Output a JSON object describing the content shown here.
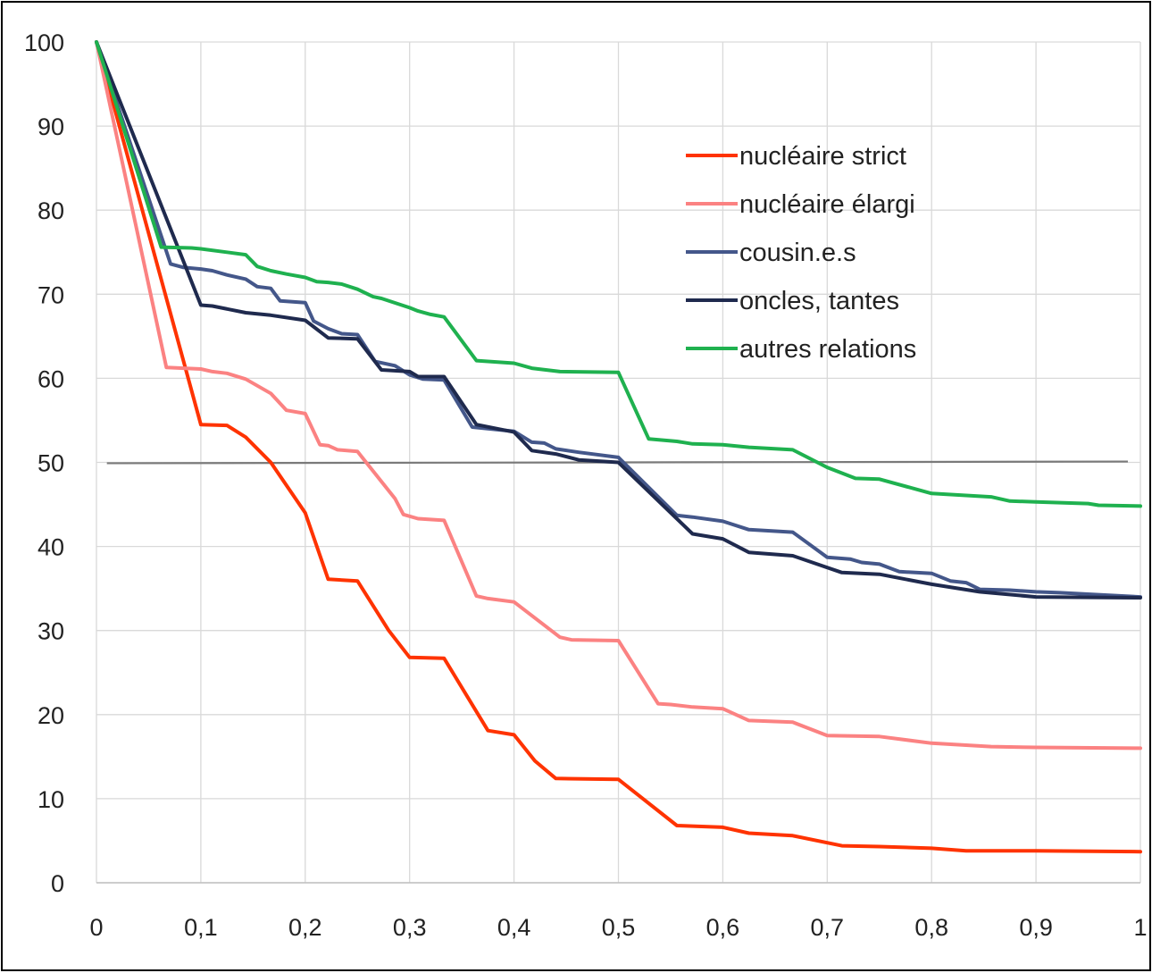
{
  "chart_data": {
    "type": "line",
    "title": "",
    "xlabel": "",
    "ylabel": "",
    "xlim": [
      0,
      1
    ],
    "ylim": [
      0,
      100
    ],
    "x_ticks": [
      "0",
      "0,1",
      "0,2",
      "0,3",
      "0,4",
      "0,5",
      "0,6",
      "0,7",
      "0,8",
      "0,9",
      "1"
    ],
    "y_ticks": [
      "0",
      "10",
      "20",
      "30",
      "40",
      "50",
      "60",
      "70",
      "80",
      "90",
      "100"
    ],
    "grid": true,
    "legend_position": "top-right",
    "reference_line": {
      "y_start": 49.9,
      "y_end": 50.1,
      "color": "#7a7a7a"
    },
    "series": [
      {
        "name": "nucléaire strict",
        "color": "#ff3300",
        "points": [
          [
            0,
            100
          ],
          [
            0.1,
            54.5
          ],
          [
            0.125,
            54.4
          ],
          [
            0.143,
            53
          ],
          [
            0.167,
            50
          ],
          [
            0.2,
            44
          ],
          [
            0.222,
            36.1
          ],
          [
            0.25,
            35.9
          ],
          [
            0.28,
            30
          ],
          [
            0.3,
            26.8
          ],
          [
            0.333,
            26.7
          ],
          [
            0.375,
            18.1
          ],
          [
            0.4,
            17.6
          ],
          [
            0.42,
            14.5
          ],
          [
            0.44,
            12.4
          ],
          [
            0.5,
            12.3
          ],
          [
            0.556,
            6.8
          ],
          [
            0.6,
            6.6
          ],
          [
            0.625,
            5.9
          ],
          [
            0.667,
            5.6
          ],
          [
            0.714,
            4.4
          ],
          [
            0.75,
            4.3
          ],
          [
            0.8,
            4.1
          ],
          [
            0.833,
            3.8
          ],
          [
            0.9,
            3.8
          ],
          [
            1,
            3.7
          ]
        ]
      },
      {
        "name": "nucléaire élargi",
        "color": "#fb8282",
        "points": [
          [
            0,
            100
          ],
          [
            0.067,
            61.3
          ],
          [
            0.1,
            61.1
          ],
          [
            0.111,
            60.8
          ],
          [
            0.125,
            60.6
          ],
          [
            0.143,
            59.9
          ],
          [
            0.167,
            58.2
          ],
          [
            0.182,
            56.2
          ],
          [
            0.2,
            55.8
          ],
          [
            0.214,
            52.1
          ],
          [
            0.222,
            52
          ],
          [
            0.231,
            51.5
          ],
          [
            0.25,
            51.3
          ],
          [
            0.286,
            45.7
          ],
          [
            0.294,
            43.8
          ],
          [
            0.308,
            43.3
          ],
          [
            0.333,
            43.1
          ],
          [
            0.364,
            34.1
          ],
          [
            0.375,
            33.8
          ],
          [
            0.4,
            33.4
          ],
          [
            0.444,
            29.2
          ],
          [
            0.455,
            28.9
          ],
          [
            0.5,
            28.8
          ],
          [
            0.538,
            21.3
          ],
          [
            0.55,
            21.2
          ],
          [
            0.571,
            20.9
          ],
          [
            0.6,
            20.7
          ],
          [
            0.625,
            19.3
          ],
          [
            0.667,
            19.1
          ],
          [
            0.7,
            17.5
          ],
          [
            0.75,
            17.4
          ],
          [
            0.8,
            16.6
          ],
          [
            0.857,
            16.2
          ],
          [
            0.9,
            16.1
          ],
          [
            1,
            16
          ]
        ]
      },
      {
        "name": "cousin.e.s",
        "color": "#44578a",
        "points": [
          [
            0,
            100
          ],
          [
            0.071,
            73.6
          ],
          [
            0.083,
            73.2
          ],
          [
            0.1,
            73
          ],
          [
            0.111,
            72.8
          ],
          [
            0.125,
            72.3
          ],
          [
            0.143,
            71.8
          ],
          [
            0.154,
            70.9
          ],
          [
            0.167,
            70.7
          ],
          [
            0.176,
            69.2
          ],
          [
            0.2,
            69
          ],
          [
            0.208,
            66.8
          ],
          [
            0.222,
            65.9
          ],
          [
            0.235,
            65.3
          ],
          [
            0.25,
            65.2
          ],
          [
            0.267,
            62
          ],
          [
            0.286,
            61.5
          ],
          [
            0.3,
            60.4
          ],
          [
            0.313,
            59.9
          ],
          [
            0.333,
            59.8
          ],
          [
            0.36,
            54.2
          ],
          [
            0.4,
            53.7
          ],
          [
            0.417,
            52.4
          ],
          [
            0.429,
            52.3
          ],
          [
            0.44,
            51.6
          ],
          [
            0.462,
            51.2
          ],
          [
            0.5,
            50.6
          ],
          [
            0.556,
            43.7
          ],
          [
            0.571,
            43.5
          ],
          [
            0.6,
            43
          ],
          [
            0.625,
            42
          ],
          [
            0.667,
            41.7
          ],
          [
            0.7,
            38.7
          ],
          [
            0.722,
            38.5
          ],
          [
            0.733,
            38.1
          ],
          [
            0.75,
            37.9
          ],
          [
            0.769,
            37
          ],
          [
            0.8,
            36.8
          ],
          [
            0.818,
            35.9
          ],
          [
            0.833,
            35.7
          ],
          [
            0.846,
            34.9
          ],
          [
            0.875,
            34.8
          ],
          [
            0.9,
            34.6
          ],
          [
            0.923,
            34.5
          ],
          [
            1,
            34
          ]
        ]
      },
      {
        "name": "oncles, tantes",
        "color": "#1f2a4e",
        "points": [
          [
            0,
            100
          ],
          [
            0.1,
            68.7
          ],
          [
            0.111,
            68.6
          ],
          [
            0.143,
            67.8
          ],
          [
            0.167,
            67.5
          ],
          [
            0.2,
            66.9
          ],
          [
            0.222,
            64.8
          ],
          [
            0.25,
            64.7
          ],
          [
            0.273,
            61
          ],
          [
            0.3,
            60.8
          ],
          [
            0.308,
            60.2
          ],
          [
            0.333,
            60.2
          ],
          [
            0.364,
            54.5
          ],
          [
            0.4,
            53.6
          ],
          [
            0.417,
            51.4
          ],
          [
            0.44,
            51
          ],
          [
            0.462,
            50.3
          ],
          [
            0.5,
            50
          ],
          [
            0.571,
            41.5
          ],
          [
            0.6,
            40.9
          ],
          [
            0.625,
            39.3
          ],
          [
            0.667,
            38.9
          ],
          [
            0.714,
            36.9
          ],
          [
            0.75,
            36.7
          ],
          [
            0.8,
            35.5
          ],
          [
            0.846,
            34.6
          ],
          [
            0.9,
            34
          ],
          [
            1,
            33.9
          ]
        ]
      },
      {
        "name": "autres relations",
        "color": "#1fb14f",
        "points": [
          [
            0,
            100
          ],
          [
            0.062,
            75.6
          ],
          [
            0.091,
            75.5
          ],
          [
            0.1,
            75.4
          ],
          [
            0.125,
            75
          ],
          [
            0.143,
            74.7
          ],
          [
            0.154,
            73.3
          ],
          [
            0.167,
            72.8
          ],
          [
            0.182,
            72.4
          ],
          [
            0.2,
            72
          ],
          [
            0.211,
            71.5
          ],
          [
            0.222,
            71.4
          ],
          [
            0.235,
            71.2
          ],
          [
            0.25,
            70.6
          ],
          [
            0.265,
            69.7
          ],
          [
            0.273,
            69.5
          ],
          [
            0.3,
            68.4
          ],
          [
            0.308,
            68
          ],
          [
            0.32,
            67.6
          ],
          [
            0.333,
            67.3
          ],
          [
            0.364,
            62.1
          ],
          [
            0.4,
            61.8
          ],
          [
            0.417,
            61.2
          ],
          [
            0.444,
            60.8
          ],
          [
            0.5,
            60.7
          ],
          [
            0.529,
            52.8
          ],
          [
            0.556,
            52.5
          ],
          [
            0.571,
            52.2
          ],
          [
            0.6,
            52.1
          ],
          [
            0.625,
            51.8
          ],
          [
            0.667,
            51.5
          ],
          [
            0.7,
            49.4
          ],
          [
            0.727,
            48.1
          ],
          [
            0.75,
            48
          ],
          [
            0.8,
            46.3
          ],
          [
            0.857,
            45.9
          ],
          [
            0.875,
            45.4
          ],
          [
            0.9,
            45.3
          ],
          [
            0.95,
            45.1
          ],
          [
            0.96,
            44.9
          ],
          [
            1,
            44.8
          ]
        ]
      }
    ]
  }
}
